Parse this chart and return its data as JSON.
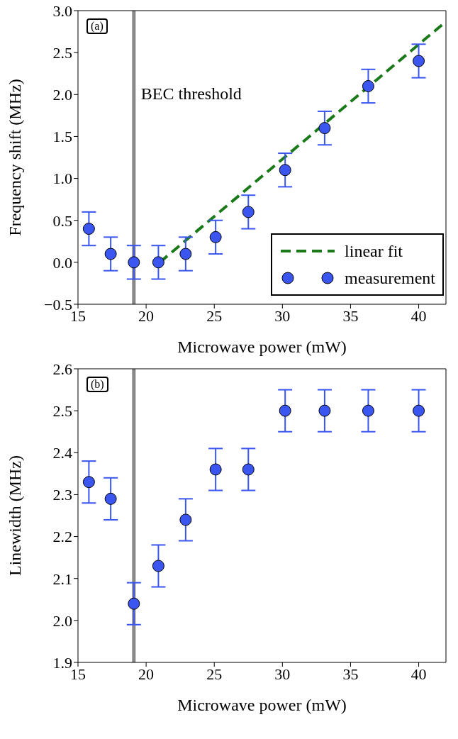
{
  "chart_data": [
    {
      "type": "scatter",
      "xlabel": "Microwave power (mW)",
      "ylabel": "Frequency shift (MHz)",
      "xlim": [
        15,
        42
      ],
      "xticks": [
        15,
        20,
        25,
        30,
        35,
        40
      ],
      "ylim": [
        -0.5,
        3.0
      ],
      "yticks": [
        {
          "value": -0.5,
          "label": "−0.5"
        },
        {
          "value": 0.0,
          "label": "0.0"
        },
        {
          "value": 0.5,
          "label": "0.5"
        },
        {
          "value": 1.0,
          "label": "1.0"
        },
        {
          "value": 1.5,
          "label": "1.5"
        },
        {
          "value": 2.0,
          "label": "2.0"
        },
        {
          "value": 2.5,
          "label": "2.5"
        },
        {
          "value": 3.0,
          "label": "3.0"
        }
      ],
      "grid": false,
      "legend": "bottom right",
      "annotations": [
        "(a)"
      ],
      "ref_lines": [
        {
          "axis": "x",
          "value": 19.1,
          "label": "BEC threshold",
          "color": "#888888"
        }
      ],
      "series": [
        {
          "type": "line",
          "name": "linear fit",
          "color": "#1a7a1a",
          "x": [
            21,
            42
          ],
          "values": [
            0,
            2.87
          ],
          "line_style": "dashed",
          "marker": "none"
        },
        {
          "name": "measurement",
          "color": "#3a55f0",
          "marker": "circle",
          "x": [
            15.8,
            17.4,
            19.1,
            20.9,
            22.9,
            25.1,
            27.5,
            30.2,
            33.1,
            36.3,
            40.0
          ],
          "values": [
            0.4,
            0.1,
            0.0,
            0.0,
            0.1,
            0.3,
            0.6,
            1.1,
            1.6,
            2.1,
            2.4
          ],
          "errors": [
            0.2,
            0.2,
            0.2,
            0.2,
            0.2,
            0.2,
            0.2,
            0.2,
            0.2,
            0.2,
            0.2
          ]
        }
      ]
    },
    {
      "type": "scatter",
      "xlabel": "Microwave power (mW)",
      "ylabel": "Linewidth (MHz)",
      "xlim": [
        15,
        42
      ],
      "xticks": [
        15,
        20,
        25,
        30,
        35,
        40
      ],
      "ylim": [
        1.9,
        2.6
      ],
      "yticks": [
        {
          "value": 1.9,
          "label": "1.9"
        },
        {
          "value": 2.0,
          "label": "2.0"
        },
        {
          "value": 2.1,
          "label": "2.1"
        },
        {
          "value": 2.2,
          "label": "2.2"
        },
        {
          "value": 2.3,
          "label": "2.3"
        },
        {
          "value": 2.4,
          "label": "2.4"
        },
        {
          "value": 2.5,
          "label": "2.5"
        },
        {
          "value": 2.6,
          "label": "2.6"
        }
      ],
      "grid": false,
      "annotations": [
        "(b)"
      ],
      "ref_lines": [
        {
          "axis": "x",
          "value": 19.1,
          "color": "#888888"
        }
      ],
      "series": [
        {
          "color": "#3a55f0",
          "marker": "circle",
          "x": [
            15.8,
            17.4,
            19.1,
            20.9,
            22.9,
            25.1,
            27.5,
            30.2,
            33.1,
            36.3,
            40.0
          ],
          "values": [
            2.33,
            2.29,
            2.04,
            2.13,
            2.24,
            2.36,
            2.36,
            2.5,
            2.5,
            2.5,
            2.5
          ],
          "errors": [
            0.05,
            0.05,
            0.05,
            0.05,
            0.05,
            0.05,
            0.05,
            0.05,
            0.05,
            0.05,
            0.05
          ]
        }
      ]
    }
  ]
}
